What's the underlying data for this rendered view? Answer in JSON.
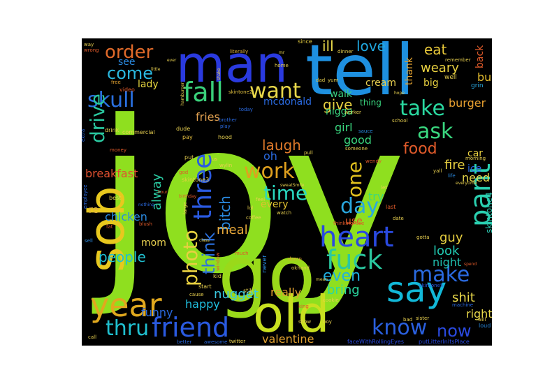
{
  "wordcloud": {
    "background": "#000000",
    "words": [
      {
        "text": "joy",
        "color": "#8fdf1f"
      },
      {
        "text": "go",
        "color": "#9ad91a"
      },
      {
        "text": "tell",
        "color": "#1e90e0"
      },
      {
        "text": "man",
        "color": "#2a3adf"
      },
      {
        "text": "old",
        "color": "#c8e020"
      },
      {
        "text": "sob",
        "color": "#e8c81e"
      },
      {
        "text": "year",
        "color": "#e0a81e"
      },
      {
        "text": "say",
        "color": "#12b8d8"
      },
      {
        "text": "three",
        "color": "#2a5ae0"
      },
      {
        "text": "friend",
        "color": "#2a5ae0"
      },
      {
        "text": "heart",
        "color": "#2a4ae0"
      },
      {
        "text": "fall",
        "color": "#3ad07a"
      },
      {
        "text": "fuck",
        "color": "#2ac8a0"
      },
      {
        "text": "pant",
        "color": "#2ad0b0"
      },
      {
        "text": "work",
        "color": "#e0a01e"
      },
      {
        "text": "skull",
        "color": "#2a70e0"
      },
      {
        "text": "take",
        "color": "#2ad8a0"
      },
      {
        "text": "drive",
        "color": "#2ac8a0"
      },
      {
        "text": "make",
        "color": "#2a6ae0"
      },
      {
        "text": "know",
        "color": "#2a60e0"
      },
      {
        "text": "photo",
        "color": "#e8d040"
      },
      {
        "text": "want",
        "color": "#e8d84a"
      },
      {
        "text": "day",
        "color": "#2aa8e0"
      },
      {
        "text": "thru",
        "color": "#20c0d0"
      },
      {
        "text": "ask",
        "color": "#3ad880"
      },
      {
        "text": "one",
        "color": "#e0c01e"
      },
      {
        "text": "order",
        "color": "#e06a2a"
      },
      {
        "text": "time",
        "color": "#2ad8c0"
      },
      {
        "text": "come",
        "color": "#2ab8e0"
      },
      {
        "text": "think",
        "color": "#2a70e0"
      },
      {
        "text": "food",
        "color": "#e05a2a"
      },
      {
        "text": "laugh",
        "color": "#e07a2a"
      },
      {
        "text": "even",
        "color": "#20b0e0"
      },
      {
        "text": "love",
        "color": "#20a8e0"
      },
      {
        "text": "now",
        "color": "#2a4ae0"
      },
      {
        "text": "people",
        "color": "#20c0d0"
      },
      {
        "text": "eat",
        "color": "#e8c83a"
      },
      {
        "text": "give",
        "color": "#e8d040"
      },
      {
        "text": "bitch",
        "color": "#2a8ae0"
      },
      {
        "text": "alway",
        "color": "#2ac8a0"
      },
      {
        "text": "nugget",
        "color": "#3ac8e0"
      },
      {
        "text": "guy",
        "color": "#e8d040"
      },
      {
        "text": "bring",
        "color": "#2ad8a0"
      },
      {
        "text": "look",
        "color": "#20c8b0"
      },
      {
        "text": "shit",
        "color": "#e8d84a"
      },
      {
        "text": "funny",
        "color": "#2a6ae0"
      },
      {
        "text": "meal",
        "color": "#e8a83a"
      },
      {
        "text": "chicken",
        "color": "#2a8ae0"
      },
      {
        "text": "fries",
        "color": "#e0a050"
      },
      {
        "text": "ill",
        "color": "#e8d84a"
      },
      {
        "text": "weary",
        "color": "#e8d040"
      },
      {
        "text": "burger",
        "color": "#e8a030"
      },
      {
        "text": "breakfast",
        "color": "#e05030"
      },
      {
        "text": "happy",
        "color": "#20c0e0"
      },
      {
        "text": "really",
        "color": "#e0a030"
      },
      {
        "text": "valentine",
        "color": "#e0a030"
      },
      {
        "text": "mcdonald",
        "color": "#2a6ae0"
      },
      {
        "text": "night",
        "color": "#20c0b0"
      },
      {
        "text": "good",
        "color": "#3ad880"
      },
      {
        "text": "girl",
        "color": "#3ad880"
      },
      {
        "text": "try",
        "color": "#3ad880"
      },
      {
        "text": "oh",
        "color": "#2a6ae0"
      },
      {
        "text": "fire",
        "color": "#e8d040"
      },
      {
        "text": "ice",
        "color": "#2a6ae0"
      },
      {
        "text": "need",
        "color": "#e8d84a"
      },
      {
        "text": "right",
        "color": "#e8d84a"
      },
      {
        "text": "buy",
        "color": "#e8c030"
      },
      {
        "text": "walk",
        "color": "#3ad080"
      },
      {
        "text": "thank",
        "color": "#e0a030"
      },
      {
        "text": "big",
        "color": "#e8d040"
      },
      {
        "text": "lady",
        "color": "#e8d840"
      },
      {
        "text": "see",
        "color": "#2a8ae0"
      },
      {
        "text": "cream",
        "color": "#e8d050"
      },
      {
        "text": "every",
        "color": "#e0c030"
      },
      {
        "text": "mom",
        "color": "#e8d050"
      },
      {
        "text": "re",
        "color": "#e0b040"
      },
      {
        "text": "back",
        "color": "#e05a2a"
      },
      {
        "text": "car",
        "color": "#e8d040"
      },
      {
        "text": "nigga",
        "color": "#3ad880"
      },
      {
        "text": "thing",
        "color": "#3ad880"
      },
      {
        "text": "use",
        "color": "#e05a2a"
      },
      {
        "text": "skintone4",
        "color": "#2ac8b0"
      },
      {
        "text": "skintone3",
        "color": "#e8d040"
      },
      {
        "text": "skintone2",
        "color": "#e0c040"
      },
      {
        "text": "skintone5",
        "color": "#2a5ae0"
      },
      {
        "text": "faceWithRollingEyes",
        "color": "#2a4ae0"
      },
      {
        "text": "putLitterInItsPlace",
        "color": "#2a4ae0"
      },
      {
        "text": "since",
        "color": "#e8d040"
      },
      {
        "text": "literally",
        "color": "#e0b040"
      },
      {
        "text": "way",
        "color": "#e8d050"
      },
      {
        "text": "wrong",
        "color": "#e05a2a"
      },
      {
        "text": "hour",
        "color": "#e05a2a"
      },
      {
        "text": "home",
        "color": "#e8d050"
      },
      {
        "text": "dinner",
        "color": "#e8d050"
      },
      {
        "text": "remember",
        "color": "#e8d050"
      },
      {
        "text": "well",
        "color": "#e8d050"
      },
      {
        "text": "grin",
        "color": "#2aa8e0"
      },
      {
        "text": "free",
        "color": "#e0a030"
      },
      {
        "text": "video",
        "color": "#e05a2a"
      },
      {
        "text": "dude",
        "color": "#e8d050"
      },
      {
        "text": "pay",
        "color": "#e8c040"
      },
      {
        "text": "put",
        "color": "#e8d050"
      },
      {
        "text": "drink",
        "color": "#e8d050"
      },
      {
        "text": "commercial",
        "color": "#e8d050"
      },
      {
        "text": "money",
        "color": "#e05a2a"
      },
      {
        "text": "best",
        "color": "#e8d050"
      },
      {
        "text": "hood",
        "color": "#e8d050"
      },
      {
        "text": "play",
        "color": "#2a6ae0"
      },
      {
        "text": "today",
        "color": "#2a6ae0"
      },
      {
        "text": "brother",
        "color": "#2a6ae0"
      },
      {
        "text": "someone",
        "color": "#e8d050"
      },
      {
        "text": "sauce",
        "color": "#2a8ae0"
      },
      {
        "text": "worker",
        "color": "#e8d050"
      },
      {
        "text": "school",
        "color": "#e8d050"
      },
      {
        "text": "wendy",
        "color": "#e05a2a"
      },
      {
        "text": "last",
        "color": "#e05a2a"
      },
      {
        "text": "date",
        "color": "#e8d050"
      },
      {
        "text": "thinkingFace",
        "color": "#e05a2a"
      },
      {
        "text": "morning",
        "color": "#e8d050"
      },
      {
        "text": "yall",
        "color": "#e8d050"
      },
      {
        "text": "life",
        "color": "#2a8ae0"
      },
      {
        "text": "everytime",
        "color": "#e8d050"
      },
      {
        "text": "gotta",
        "color": "#e8d050"
      },
      {
        "text": "spend",
        "color": "#e05a2a"
      },
      {
        "text": "loud",
        "color": "#2a8ae0"
      },
      {
        "text": "machine",
        "color": "#2a6ae0"
      },
      {
        "text": "will",
        "color": "#e8d050"
      },
      {
        "text": "sister",
        "color": "#e8d050"
      },
      {
        "text": "bad",
        "color": "#e8d050"
      },
      {
        "text": "cookie",
        "color": "#e8d050"
      },
      {
        "text": "mean",
        "color": "#e8d050"
      },
      {
        "text": "okhand",
        "color": "#e8d050"
      },
      {
        "text": "damn",
        "color": "#e0a030"
      },
      {
        "text": "much",
        "color": "#e05a2a"
      },
      {
        "text": "never",
        "color": "#2a8ae0"
      },
      {
        "text": "kid",
        "color": "#e8d050"
      },
      {
        "text": "window",
        "color": "#e05a2a"
      },
      {
        "text": "still",
        "color": "#e8d050"
      },
      {
        "text": "start",
        "color": "#e8d050"
      },
      {
        "text": "cause",
        "color": "#e8d050"
      },
      {
        "text": "better",
        "color": "#2a6ae0"
      },
      {
        "text": "awesome",
        "color": "#2a6ae0"
      },
      {
        "text": "twitter",
        "color": "#e8d050"
      },
      {
        "text": "call",
        "color": "#e8d050"
      },
      {
        "text": "king",
        "color": "#e05a2a"
      },
      {
        "text": "show",
        "color": "#e8d050"
      },
      {
        "text": "boy",
        "color": "#e8d050"
      },
      {
        "text": "coffee",
        "color": "#e8d050"
      },
      {
        "text": "watch",
        "color": "#e8d050"
      },
      {
        "text": "lol",
        "color": "#e8d050"
      },
      {
        "text": "feel",
        "color": "#e8d050"
      },
      {
        "text": "sweatSmile",
        "color": "#e8d050"
      },
      {
        "text": "let",
        "color": "#e8d050"
      },
      {
        "text": "fat",
        "color": "#e05a2a"
      },
      {
        "text": "sell",
        "color": "#2a8ae0"
      },
      {
        "text": "employee",
        "color": "#2a6ae0"
      },
      {
        "text": "extra",
        "color": "#2a6ae0"
      },
      {
        "text": "blush",
        "color": "#e05a2a"
      },
      {
        "text": "nothing",
        "color": "#2a6ae0"
      },
      {
        "text": "god",
        "color": "#e05a2a"
      },
      {
        "text": "birthday",
        "color": "#e05a2a"
      },
      {
        "text": "large",
        "color": "#e8d050"
      },
      {
        "text": "class",
        "color": "#e8d050"
      },
      {
        "text": "us",
        "color": "#e8d050"
      },
      {
        "text": "wylin",
        "color": "#e8d050"
      },
      {
        "text": "pull",
        "color": "#e8d050"
      },
      {
        "text": "hamburger",
        "color": "#e8d050"
      },
      {
        "text": "shake",
        "color": "#e8d050"
      },
      {
        "text": "little",
        "color": "#e8d050"
      },
      {
        "text": "ever",
        "color": "#e8d050"
      },
      {
        "text": "mr",
        "color": "#e8d050"
      },
      {
        "text": "dad",
        "color": "#e8d050"
      },
      {
        "text": "yum",
        "color": "#e8d050"
      },
      {
        "text": "hope",
        "color": "#e8d050"
      }
    ]
  }
}
